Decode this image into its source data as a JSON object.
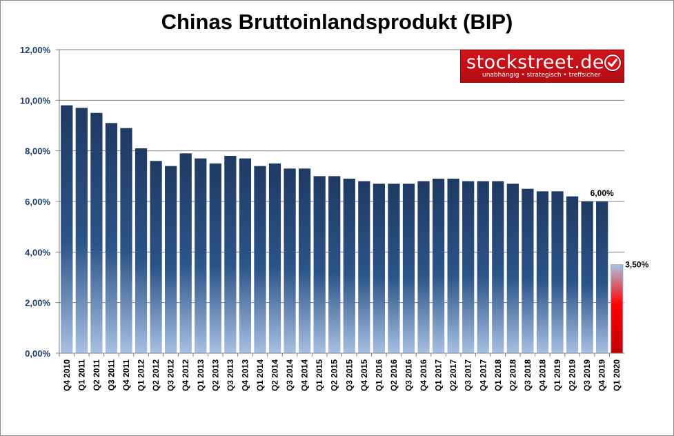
{
  "chart_data": {
    "type": "bar",
    "title": "Chinas Bruttoinlandsprodukt (BIP)",
    "categories": [
      "Q4 2010",
      "Q1 2011",
      "Q2 2011",
      "Q3 2011",
      "Q4 2011",
      "Q1 2012",
      "Q2 2012",
      "Q3 2012",
      "Q4 2012",
      "Q1 2013",
      "Q2 2013",
      "Q3 2013",
      "Q4 2013",
      "Q1 2014",
      "Q2 2014",
      "Q3 2014",
      "Q4 2014",
      "Q1 2015",
      "Q2 2015",
      "Q3 2015",
      "Q4 2015",
      "Q1 2016",
      "Q2 2016",
      "Q3 2016",
      "Q4 2016",
      "Q1 2017",
      "Q2 2017",
      "Q3 2017",
      "Q4 2017",
      "Q1 2018",
      "Q2 2018",
      "Q3 2018",
      "Q4 2018",
      "Q1 2019",
      "Q2 2019",
      "Q3 2019",
      "Q4 2019",
      "Q1 2020"
    ],
    "values": [
      9.8,
      9.7,
      9.5,
      9.1,
      8.9,
      8.1,
      7.6,
      7.4,
      7.9,
      7.7,
      7.5,
      7.8,
      7.7,
      7.4,
      7.5,
      7.3,
      7.3,
      7.0,
      7.0,
      6.9,
      6.8,
      6.7,
      6.7,
      6.7,
      6.8,
      6.9,
      6.9,
      6.8,
      6.8,
      6.8,
      6.7,
      6.5,
      6.4,
      6.4,
      6.2,
      6.0,
      6.0,
      3.5
    ],
    "highlight_index": 37,
    "data_labels": [
      {
        "index": 36,
        "text": "6,00%"
      },
      {
        "index": 37,
        "text": "3,50%"
      }
    ],
    "yticks": [
      "0,00%",
      "2,00%",
      "4,00%",
      "6,00%",
      "8,00%",
      "10,00%",
      "12,00%"
    ],
    "ylim": [
      0,
      12
    ],
    "ytick_step": 2,
    "grid": true,
    "xlabel": "",
    "ylabel": "",
    "colors": {
      "bar_top": "#1f3a63",
      "bar_mid": "#2c5488",
      "bar_bottom": "#a7c0e2",
      "highlight_top": "#a9c4e6",
      "highlight_bottom": "#c00000",
      "highlight_mid": "#ff0000"
    }
  },
  "logo": {
    "main": "stockstreet.de",
    "tagline": "unabhängig • strategisch • treffsicher"
  }
}
